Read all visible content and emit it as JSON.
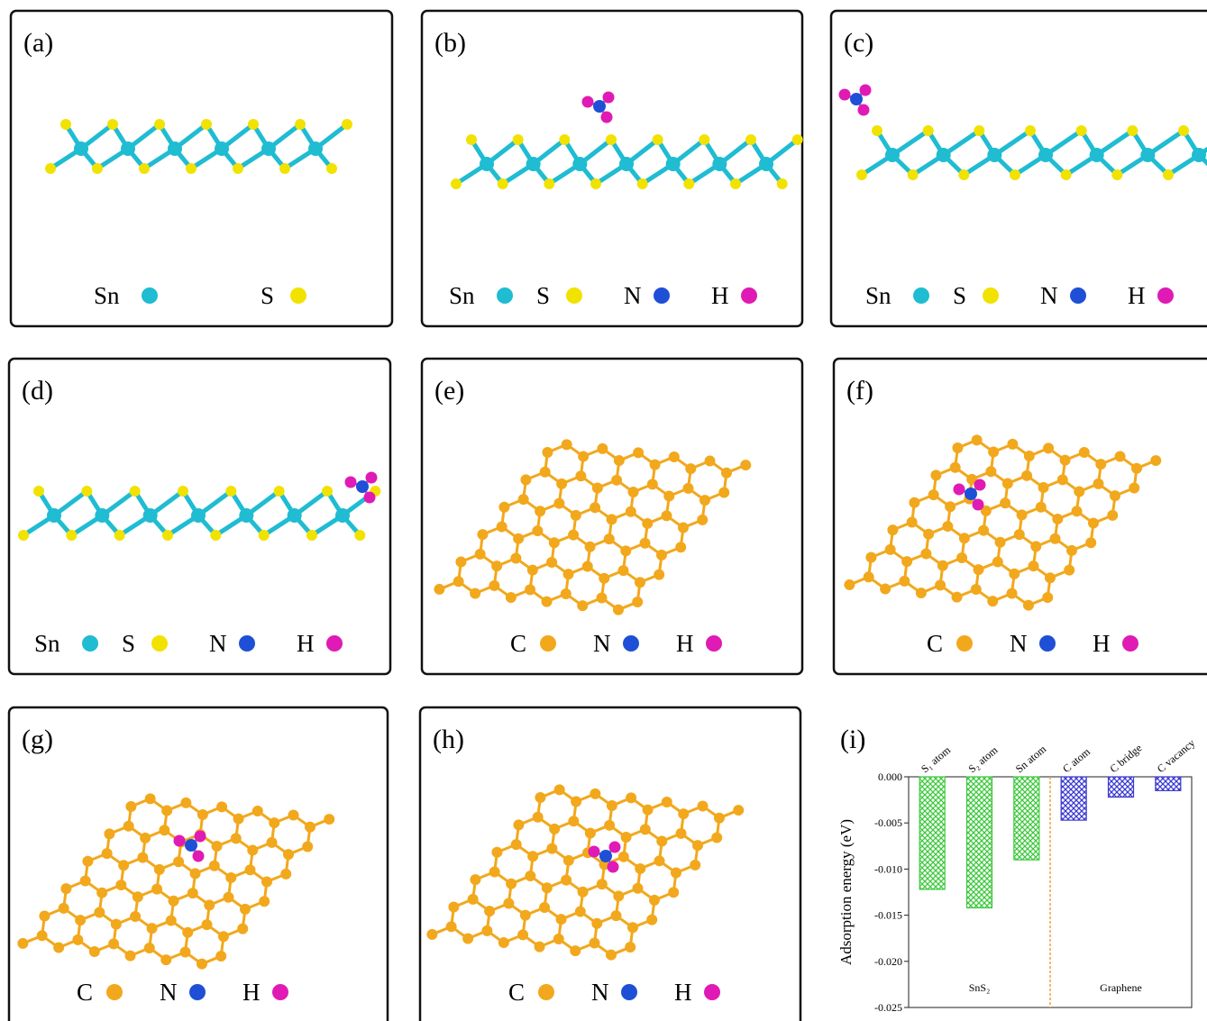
{
  "panels": [
    {
      "label": "(a)",
      "legend": [
        {
          "name": "Sn",
          "color": "#1fbcd2"
        },
        {
          "name": "S",
          "color": "#f2e200"
        }
      ]
    },
    {
      "label": "(b)",
      "legend": [
        {
          "name": "Sn",
          "color": "#1fbcd2"
        },
        {
          "name": "S",
          "color": "#f2e200"
        },
        {
          "name": "N",
          "color": "#1f4fd6"
        },
        {
          "name": "H",
          "color": "#e01ab4"
        }
      ]
    },
    {
      "label": "(c)",
      "legend": [
        {
          "name": "Sn",
          "color": "#1fbcd2"
        },
        {
          "name": "S",
          "color": "#f2e200"
        },
        {
          "name": "N",
          "color": "#1f4fd6"
        },
        {
          "name": "H",
          "color": "#e01ab4"
        }
      ]
    },
    {
      "label": "(d)",
      "legend": [
        {
          "name": "Sn",
          "color": "#1fbcd2"
        },
        {
          "name": "S",
          "color": "#f2e200"
        },
        {
          "name": "N",
          "color": "#1f4fd6"
        },
        {
          "name": "H",
          "color": "#e01ab4"
        }
      ]
    },
    {
      "label": "(e)",
      "legend": [
        {
          "name": "C",
          "color": "#f2a81c"
        },
        {
          "name": "N",
          "color": "#1f4fd6"
        },
        {
          "name": "H",
          "color": "#e01ab4"
        }
      ]
    },
    {
      "label": "(f)",
      "legend": [
        {
          "name": "C",
          "color": "#f2a81c"
        },
        {
          "name": "N",
          "color": "#1f4fd6"
        },
        {
          "name": "H",
          "color": "#e01ab4"
        }
      ]
    },
    {
      "label": "(g)",
      "legend": [
        {
          "name": "C",
          "color": "#f2a81c"
        },
        {
          "name": "N",
          "color": "#1f4fd6"
        },
        {
          "name": "H",
          "color": "#e01ab4"
        }
      ]
    },
    {
      "label": "(h)",
      "legend": [
        {
          "name": "C",
          "color": "#f2a81c"
        },
        {
          "name": "N",
          "color": "#1f4fd6"
        },
        {
          "name": "H",
          "color": "#e01ab4"
        }
      ]
    }
  ],
  "chart_data": {
    "type": "bar",
    "panel_label": "(i)",
    "y_label": "Adsorption energy (eV)",
    "categories": [
      "S₁ atom",
      "S₂ atom",
      "Sn atom",
      "C atom",
      "C bridge",
      "C vacancy"
    ],
    "values": [
      -0.0122,
      -0.0142,
      -0.009,
      -0.0047,
      -0.0022,
      -0.0015
    ],
    "colors": [
      "#3cc83c",
      "#3cc83c",
      "#3cc83c",
      "#3a3ad0",
      "#3a3ad0",
      "#3a3ad0"
    ],
    "groups": [
      "SnS₂",
      "Graphene"
    ],
    "ylim": [
      -0.025,
      0
    ],
    "yticks": [
      {
        "value": 0,
        "label": "0.000"
      },
      -0.005,
      {
        "value": -0.01,
        "label": "-0.010"
      },
      -0.015,
      {
        "value": -0.02,
        "label": "-0.020"
      },
      -0.025
    ]
  }
}
